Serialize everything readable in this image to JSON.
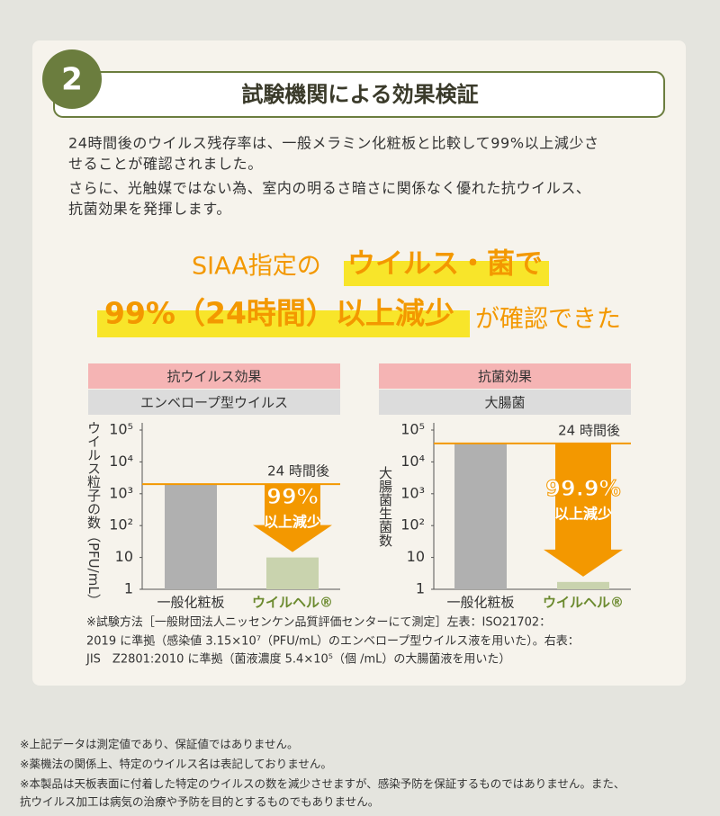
{
  "header": {
    "number": "2",
    "title": "試験機関による効果検証"
  },
  "intro": [
    "24時間後のウイルス残存率は、一般メラミン化粧板と比較して99%以上減少さ",
    "せることが確認されました。",
    "さらに、光触媒ではない為、室内の明るさ暗さに関係なく優れた抗ウイルス、",
    "抗菌効果を発揮します。"
  ],
  "headline": {
    "part1": "SIAA指定の",
    "highlight1": "ウイルス・菌で",
    "highlight2": "99%（24時間）以上減少",
    "part2": "が確認できた"
  },
  "chart_data": [
    {
      "type": "bar",
      "header": "抗ウイルス効果",
      "subheader": "エンベロープ型ウイルス",
      "y_label": "ウイルス粒子の数（PFU/mL）",
      "categories": [
        "一般化粧板",
        "ウイルヘル®"
      ],
      "values": [
        2000,
        10
      ],
      "colors": [
        "#b0b0b0",
        "#c9d3ae"
      ],
      "label_colors": [
        "#333333",
        "#6b8a2e"
      ],
      "ylim": [
        1,
        100000
      ],
      "log_scale": true,
      "yticks": [
        1,
        10,
        {
          "value": 100,
          "label": "10²"
        },
        {
          "value": 1000,
          "label": "10³"
        },
        {
          "value": 10000,
          "label": "10⁴"
        },
        {
          "value": 100000,
          "label": "10⁵"
        }
      ],
      "accent_color": "#f39800",
      "annotation": "24 時間後",
      "callout": "99%",
      "callout_sub": "以上減少"
    },
    {
      "type": "bar",
      "header": "抗菌効果",
      "subheader": "大腸菌",
      "y_label": "大腸菌生菌数",
      "categories": [
        "一般化粧板",
        "ウイルヘル®"
      ],
      "values": [
        38000,
        1.7
      ],
      "colors": [
        "#b0b0b0",
        "#c9d3ae"
      ],
      "label_colors": [
        "#333333",
        "#6b8a2e"
      ],
      "ylim": [
        1,
        100000
      ],
      "log_scale": true,
      "yticks": [
        1,
        10,
        {
          "value": 100,
          "label": "10²"
        },
        {
          "value": 1000,
          "label": "10³"
        },
        {
          "value": 10000,
          "label": "10⁴"
        },
        {
          "value": 100000,
          "label": "10⁵"
        }
      ],
      "accent_color": "#f39800",
      "annotation": "24 時間後",
      "callout": "99.9%",
      "callout_sub": "以上減少"
    }
  ],
  "method_note": [
    "※試験方法［一般財団法人ニッセンケン品質評価センターにて測定］左表：ISO21702：",
    "2019 に準拠（感染値 3.15×10⁷（PFU/mL）のエンベロープ型ウイルス液を用いた）。右表：",
    "JIS　Z2801:2010 に準拠（菌液濃度 5.4×10⁵（個 /mL）の大腸菌液を用いた）"
  ],
  "disclaimers": [
    "※上記データは測定値であり、保証値ではありません。",
    "※薬機法の関係上、特定のウイルス名は表記しておりません。",
    "※本製品は天板表面に付着した特定のウイルスの数を減少させますが、感染予防を保証するものではありません。また、",
    "抗ウイルス加工は病気の治療や予防を目的とするものでもありません。"
  ]
}
